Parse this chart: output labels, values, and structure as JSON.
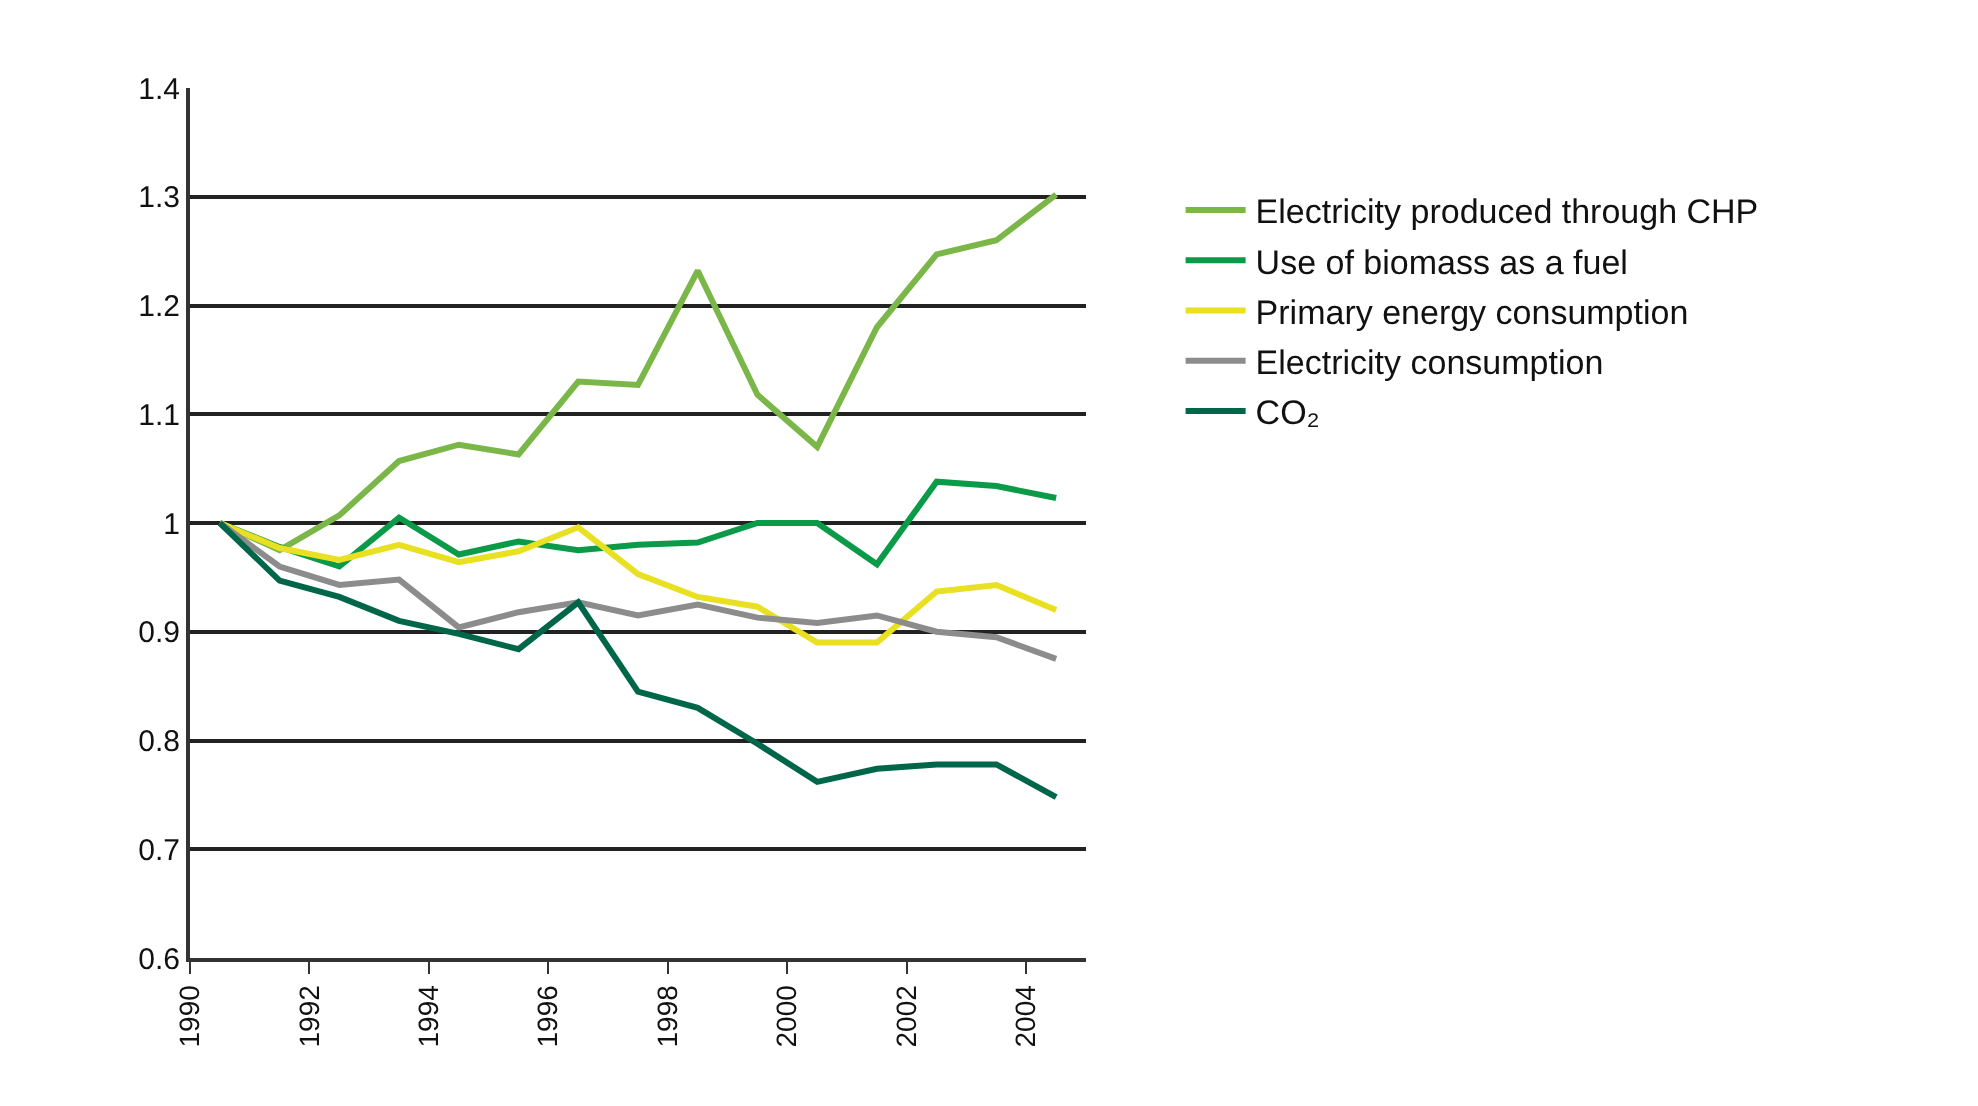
{
  "chart_data": {
    "type": "line",
    "x": [
      1990.5,
      1991.5,
      1992.5,
      1993.5,
      1994.5,
      1995.5,
      1996.5,
      1997.5,
      1998.5,
      1999.5,
      2000.5,
      2001.5,
      2002.5,
      2003.5,
      2004.5
    ],
    "series": [
      {
        "name": "Electricity produced through CHP",
        "color": "#7ab648",
        "values": [
          1.0,
          0.975,
          1.007,
          1.057,
          1.072,
          1.063,
          1.13,
          1.127,
          1.232,
          1.118,
          1.07,
          1.18,
          1.247,
          1.26,
          1.302
        ]
      },
      {
        "name": "Use of biomass as a fuel",
        "color": "#0a9a48",
        "values": [
          1.0,
          0.978,
          0.96,
          1.005,
          0.971,
          0.983,
          0.975,
          0.98,
          0.982,
          1.0,
          1.0,
          0.962,
          1.038,
          1.034,
          1.023
        ]
      },
      {
        "name": "Primary energy consumption",
        "color": "#e8e020",
        "values": [
          1.0,
          0.977,
          0.966,
          0.98,
          0.964,
          0.974,
          0.996,
          0.953,
          0.932,
          0.923,
          0.89,
          0.89,
          0.937,
          0.943,
          0.92
        ]
      },
      {
        "name": "Electricity consumption",
        "color": "#8c8c8c",
        "values": [
          1.0,
          0.96,
          0.943,
          0.948,
          0.904,
          0.918,
          0.927,
          0.915,
          0.925,
          0.913,
          0.908,
          0.915,
          0.9,
          0.895,
          0.875
        ]
      },
      {
        "name": "CO₂",
        "color": "#00664a",
        "values": [
          1.0,
          0.947,
          0.932,
          0.91,
          0.898,
          0.884,
          0.927,
          0.845,
          0.83,
          0.797,
          0.762,
          0.774,
          0.778,
          0.778,
          0.748
        ]
      }
    ],
    "xlim": [
      1990,
      2005
    ],
    "xticks": [
      1990,
      1992,
      1994,
      1996,
      1998,
      2000,
      2002,
      2004
    ],
    "ylim": [
      0.6,
      1.4
    ],
    "yticks": [
      0.6,
      0.7,
      0.8,
      0.9,
      1,
      1.1,
      1.2,
      1.3,
      1.4
    ],
    "grid": "y",
    "legend": "right",
    "marker": "none",
    "line_style": "solid"
  }
}
